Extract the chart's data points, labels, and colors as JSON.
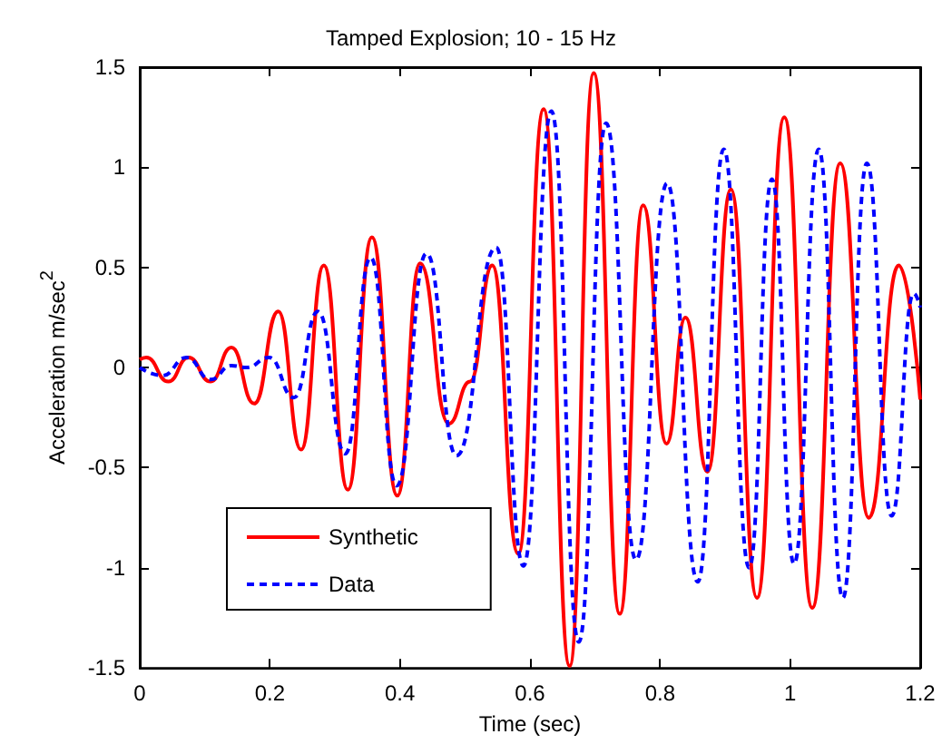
{
  "chart_data": {
    "type": "line",
    "title": "Tamped Explosion; 10 - 15 Hz",
    "xlabel": "Time (sec)",
    "ylabel": "Acceleration m/sec$^{2}$",
    "xlim": [
      0,
      1.2
    ],
    "xticks": [
      0,
      0.2,
      0.4,
      0.6,
      0.8,
      1,
      1.2
    ],
    "ylim": [
      -1.5,
      1.5
    ],
    "yticks": [
      -1.5,
      -1,
      -0.5,
      0,
      0.5,
      1,
      1.5
    ],
    "grid": false,
    "legend": "bottom left",
    "marker": "none",
    "series": [
      {
        "name": "Synthetic",
        "color": "#ff0000",
        "line_style": "solid",
        "x": [
          0,
          0.01,
          0.044,
          0.075,
          0.109,
          0.141,
          0.176,
          0.213,
          0.248,
          0.283,
          0.32,
          0.357,
          0.396,
          0.431,
          0.475,
          0.508,
          0.542,
          0.582,
          0.621,
          0.661,
          0.698,
          0.738,
          0.774,
          0.81,
          0.839,
          0.873,
          0.909,
          0.949,
          0.991,
          1.034,
          1.077,
          1.121,
          1.167,
          1.2
        ],
        "values": [
          0.04,
          0.05,
          -0.07,
          0.05,
          -0.07,
          0.1,
          -0.18,
          0.28,
          -0.41,
          0.51,
          -0.61,
          0.65,
          -0.64,
          0.52,
          -0.28,
          -0.07,
          0.51,
          -0.93,
          1.29,
          -1.49,
          1.47,
          -1.23,
          0.81,
          -0.38,
          0.25,
          -0.52,
          0.89,
          -1.15,
          1.25,
          -1.2,
          1.02,
          -0.75,
          0.51,
          -0.16
        ]
      },
      {
        "name": "Data",
        "color": "#0000ff",
        "line_style": "dashed",
        "x": [
          0,
          0.035,
          0.072,
          0.109,
          0.141,
          0.164,
          0.199,
          0.237,
          0.274,
          0.316,
          0.355,
          0.395,
          0.441,
          0.487,
          0.548,
          0.59,
          0.633,
          0.675,
          0.717,
          0.763,
          0.811,
          0.858,
          0.898,
          0.937,
          0.972,
          1.006,
          1.044,
          1.081,
          1.118,
          1.156,
          1.19,
          1.2
        ],
        "values": [
          0,
          -0.04,
          0.05,
          -0.06,
          0.01,
          0,
          0.05,
          -0.15,
          0.28,
          -0.43,
          0.55,
          -0.59,
          0.57,
          -0.44,
          0.6,
          -0.99,
          1.28,
          -1.37,
          1.22,
          -0.96,
          0.92,
          -1.07,
          1.09,
          -1,
          0.94,
          -0.98,
          1.09,
          -1.15,
          1.02,
          -0.74,
          0.37,
          0.3
        ]
      }
    ]
  }
}
